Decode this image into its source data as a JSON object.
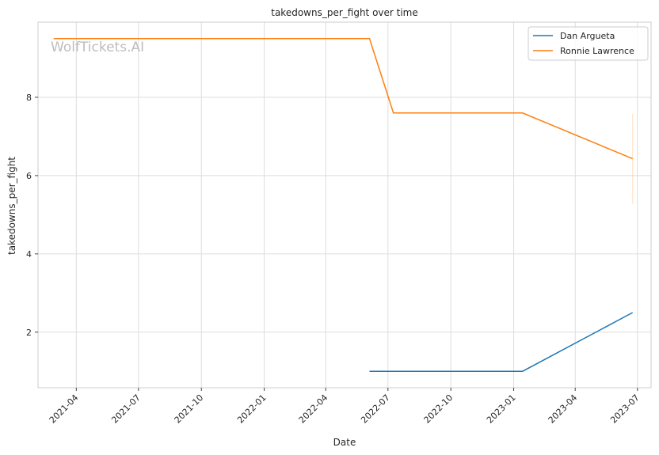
{
  "watermark": "WolfTickets.AI",
  "chart_data": {
    "type": "line",
    "title": "takedowns_per_fight over time",
    "xlabel": "Date",
    "ylabel": "takedowns_per_fight",
    "x_ticks": [
      "2021-04",
      "2021-07",
      "2021-10",
      "2022-01",
      "2022-04",
      "2022-07",
      "2022-10",
      "2023-01",
      "2023-04",
      "2023-07"
    ],
    "y_ticks": [
      2,
      4,
      6,
      8
    ],
    "xlim": [
      "2021-02-04",
      "2023-07-21"
    ],
    "ylim": [
      0.58,
      9.92
    ],
    "grid": true,
    "legend_position": "top-right",
    "series": [
      {
        "name": "Dan Argueta",
        "color": "#1f77b4",
        "points": [
          {
            "x": "2022-06-04",
            "y": 1.0
          },
          {
            "x": "2023-01-14",
            "y": 1.0
          },
          {
            "x": "2023-06-24",
            "y": 2.5
          }
        ]
      },
      {
        "name": "Ronnie Lawrence",
        "color": "#ff7f0e",
        "points": [
          {
            "x": "2021-02-27",
            "y": 9.5
          },
          {
            "x": "2022-06-04",
            "y": 9.5
          },
          {
            "x": "2022-07-09",
            "y": 7.6
          },
          {
            "x": "2023-01-14",
            "y": 7.6
          },
          {
            "x": "2023-06-24",
            "y": 6.43
          }
        ],
        "error_band": {
          "x": "2023-06-24",
          "low": 5.28,
          "high": 7.58
        }
      }
    ]
  }
}
